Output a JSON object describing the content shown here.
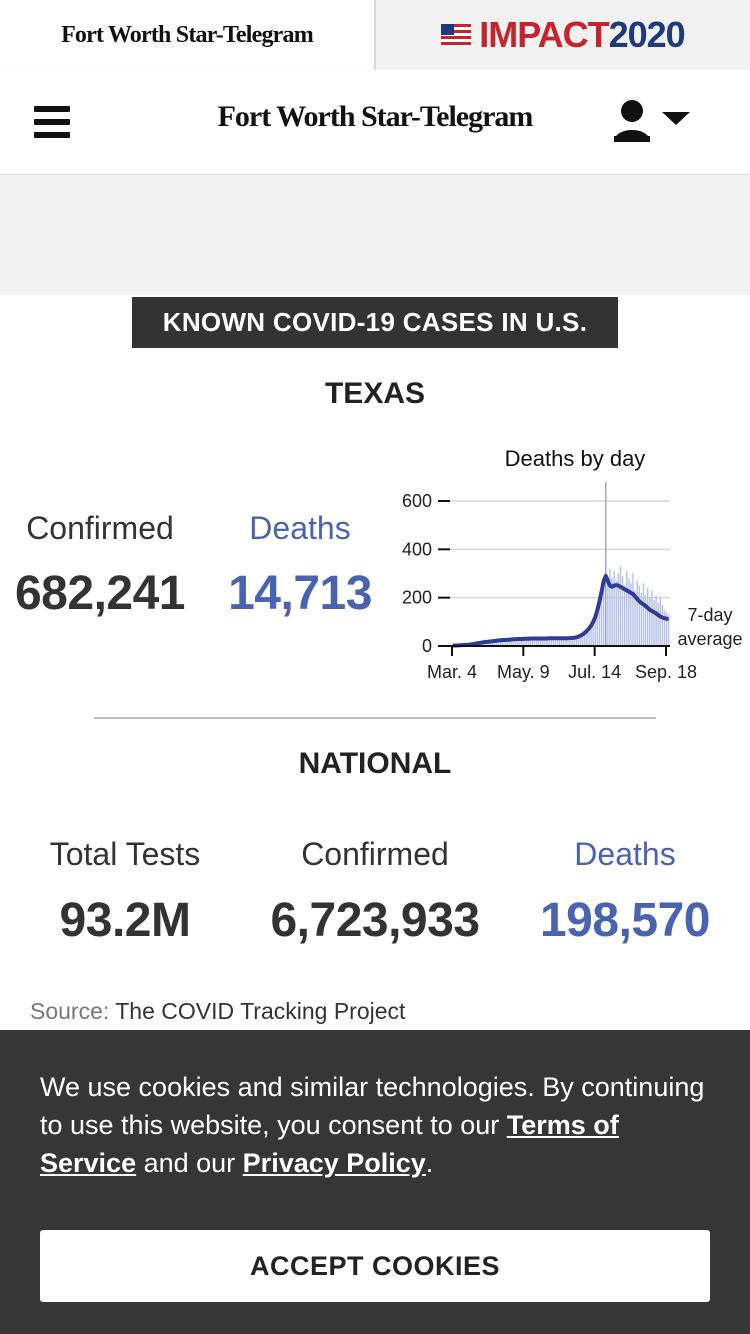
{
  "top_strip": {
    "brand_small": "Fort Worth Star-Telegram",
    "impact_word": "IMPACT",
    "impact_year": "2020"
  },
  "header": {
    "masthead": "Fort Worth Star-Telegram",
    "icons": [
      "hamburger-menu-icon",
      "user-icon",
      "chevron-down-icon"
    ]
  },
  "widget": {
    "badge": "KNOWN COVID-19 CASES IN U.S.",
    "texas": {
      "title": "TEXAS",
      "confirmed_label": "Confirmed",
      "confirmed_value": "682,241",
      "deaths_label": "Deaths",
      "deaths_value": "14,713"
    },
    "national": {
      "title": "NATIONAL",
      "tests_label": "Total Tests",
      "tests_value": "93.2M",
      "confirmed_label": "Confirmed",
      "confirmed_value": "6,723,933",
      "deaths_label": "Deaths",
      "deaths_value": "198,570"
    },
    "source_label": "Source:",
    "source_value": "The COVID Tracking Project"
  },
  "chart_data": {
    "type": "bar",
    "title": "Deaths by day",
    "x_ticks": [
      "Mar. 4",
      "May. 9",
      "Jul. 14",
      "Sep. 18"
    ],
    "y_ticks": [
      0,
      200,
      400,
      600
    ],
    "ylim": [
      0,
      650
    ],
    "grid": true,
    "line_label": [
      "7-day",
      "average"
    ],
    "daily_values": [
      2,
      1,
      3,
      2,
      4,
      3,
      5,
      4,
      6,
      5,
      8,
      10,
      12,
      9,
      14,
      16,
      11,
      18,
      20,
      15,
      22,
      17,
      24,
      19,
      25,
      21,
      28,
      23,
      26,
      30,
      24,
      32,
      27,
      29,
      33,
      25,
      31,
      28,
      34,
      26,
      35,
      30,
      27,
      33,
      29,
      36,
      28,
      31,
      34,
      30,
      37,
      29,
      32,
      35,
      28,
      31,
      36,
      33,
      30,
      38,
      41,
      45,
      40,
      52,
      60,
      58,
      70,
      85,
      110,
      140,
      170,
      210,
      250,
      300,
      260,
      320,
      280,
      310,
      270,
      300,
      330,
      290,
      250,
      310,
      280,
      260,
      300,
      230,
      270,
      250,
      220,
      260,
      210,
      240,
      200,
      230,
      190,
      210,
      180,
      200,
      170,
      150,
      140,
      130
    ],
    "avg_values": [
      2,
      2,
      2,
      3,
      3,
      4,
      4,
      5,
      6,
      7,
      8,
      10,
      12,
      13,
      14,
      16,
      17,
      18,
      19,
      20,
      21,
      22,
      23,
      24,
      25,
      25,
      26,
      26,
      27,
      28,
      28,
      29,
      29,
      29,
      30,
      30,
      30,
      31,
      31,
      31,
      31,
      31,
      31,
      31,
      31,
      31,
      32,
      32,
      32,
      32,
      32,
      32,
      32,
      32,
      32,
      32,
      33,
      33,
      34,
      36,
      39,
      43,
      48,
      55,
      63,
      72,
      84,
      100,
      120,
      150,
      185,
      225,
      270,
      290,
      270,
      250,
      245,
      250,
      252,
      250,
      245,
      240,
      235,
      230,
      225,
      220,
      215,
      205,
      195,
      185,
      178,
      172,
      165,
      158,
      150,
      145,
      140,
      135,
      128,
      122,
      118,
      115,
      113,
      112
    ],
    "highlight_index": 73
  },
  "cookie": {
    "text_1": "We use cookies and similar technologies. By continuing to use this website, you consent to our ",
    "terms_link": "Terms of Service",
    "text_2": " and our ",
    "privacy_link": "Privacy Policy",
    "text_3": ".",
    "accept_button": "ACCEPT COOKIES"
  },
  "colors": {
    "accent_blue": "#4a63b0",
    "bar_blue": "#b9c2e6",
    "line_navy": "#2e3b9a",
    "banner_dark": "#363636",
    "badge_dark": "#333333"
  }
}
